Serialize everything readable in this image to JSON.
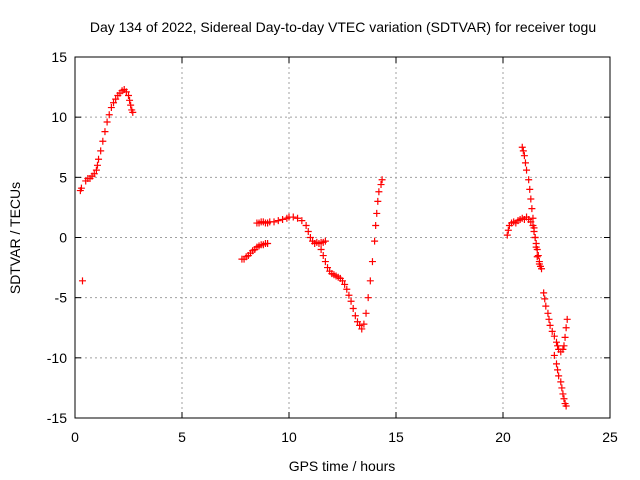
{
  "chart_data": {
    "type": "scatter",
    "title": "Day 134 of 2022, Sidereal Day-to-day VTEC variation (SDTVAR) for receiver togu",
    "xlabel": "GPS time / hours",
    "ylabel": "SDTVAR / TECUs",
    "xlim": [
      0,
      25
    ],
    "ylim": [
      -15,
      15
    ],
    "xticks": [
      0,
      5,
      10,
      15,
      20,
      25
    ],
    "yticks": [
      -15,
      -10,
      -5,
      0,
      5,
      10,
      15
    ],
    "xtick_labels": [
      "0",
      "5",
      "10",
      "15",
      "20",
      "25"
    ],
    "ytick_labels": [
      "-15",
      "-10",
      "-5",
      "0",
      "5",
      "10",
      "15"
    ],
    "grid": true,
    "legend": "none",
    "marker": "plus",
    "color": "#ff0000",
    "series": [
      {
        "points": [
          [
            0.25,
            3.9
          ],
          [
            0.3,
            4.1
          ],
          [
            0.35,
            -3.6
          ],
          [
            0.5,
            4.7
          ],
          [
            0.6,
            4.9
          ],
          [
            0.7,
            4.9
          ],
          [
            0.8,
            5.1
          ],
          [
            0.9,
            5.3
          ],
          [
            1.0,
            5.6
          ],
          [
            1.05,
            6.0
          ],
          [
            1.1,
            6.5
          ],
          [
            1.2,
            7.2
          ],
          [
            1.3,
            8.0
          ],
          [
            1.4,
            8.8
          ],
          [
            1.5,
            9.6
          ],
          [
            1.6,
            10.2
          ],
          [
            1.7,
            10.8
          ],
          [
            1.8,
            11.2
          ],
          [
            1.9,
            11.5
          ],
          [
            2.0,
            11.8
          ],
          [
            2.1,
            12.0
          ],
          [
            2.2,
            12.2
          ],
          [
            2.3,
            12.3
          ],
          [
            2.4,
            12.1
          ],
          [
            2.5,
            11.8
          ],
          [
            2.55,
            11.4
          ],
          [
            2.6,
            11.0
          ],
          [
            2.65,
            10.6
          ],
          [
            2.7,
            10.4
          ]
        ]
      },
      {
        "points": [
          [
            7.8,
            -1.8
          ],
          [
            7.9,
            -1.8
          ],
          [
            8.0,
            -1.6
          ],
          [
            8.1,
            -1.5
          ],
          [
            8.2,
            -1.3
          ],
          [
            8.3,
            -1.1
          ],
          [
            8.4,
            -1.0
          ],
          [
            8.5,
            -0.8
          ],
          [
            8.6,
            -0.7
          ],
          [
            8.7,
            -0.6
          ],
          [
            8.8,
            -0.6
          ],
          [
            8.9,
            -0.5
          ],
          [
            9.0,
            -0.5
          ],
          [
            8.5,
            1.2
          ],
          [
            8.6,
            1.2
          ],
          [
            8.7,
            1.3
          ],
          [
            8.8,
            1.3
          ],
          [
            8.9,
            1.2
          ],
          [
            9.0,
            1.2
          ],
          [
            9.1,
            1.3
          ],
          [
            9.3,
            1.3
          ],
          [
            9.5,
            1.4
          ],
          [
            9.7,
            1.5
          ],
          [
            9.9,
            1.6
          ],
          [
            10.0,
            1.7
          ],
          [
            10.2,
            1.7
          ],
          [
            10.4,
            1.6
          ],
          [
            10.6,
            1.4
          ],
          [
            10.8,
            1.0
          ],
          [
            10.9,
            0.5
          ],
          [
            11.0,
            0.0
          ],
          [
            11.1,
            -0.3
          ],
          [
            11.2,
            -0.5
          ],
          [
            11.3,
            -0.4
          ],
          [
            11.4,
            -0.5
          ],
          [
            11.5,
            -0.4
          ],
          [
            11.6,
            -0.4
          ],
          [
            11.7,
            -0.3
          ],
          [
            11.5,
            -1.0
          ],
          [
            11.6,
            -1.5
          ],
          [
            11.7,
            -2.0
          ],
          [
            11.8,
            -2.5
          ],
          [
            11.9,
            -2.8
          ],
          [
            12.0,
            -3.0
          ],
          [
            12.1,
            -3.1
          ],
          [
            12.2,
            -3.2
          ],
          [
            12.3,
            -3.3
          ],
          [
            12.4,
            -3.4
          ],
          [
            12.5,
            -3.6
          ],
          [
            12.6,
            -3.9
          ],
          [
            12.7,
            -4.3
          ],
          [
            12.8,
            -4.8
          ],
          [
            12.9,
            -5.3
          ],
          [
            13.0,
            -5.9
          ],
          [
            13.1,
            -6.5
          ],
          [
            13.2,
            -7.0
          ],
          [
            13.3,
            -7.3
          ],
          [
            13.4,
            -7.6
          ],
          [
            13.5,
            -7.2
          ],
          [
            13.6,
            -6.3
          ],
          [
            13.7,
            -5.0
          ],
          [
            13.8,
            -3.6
          ],
          [
            13.9,
            -2.0
          ],
          [
            14.0,
            -0.3
          ],
          [
            14.05,
            1.0
          ],
          [
            14.1,
            2.0
          ],
          [
            14.15,
            3.0
          ],
          [
            14.2,
            3.8
          ],
          [
            14.3,
            4.4
          ],
          [
            14.35,
            4.8
          ]
        ]
      },
      {
        "points": [
          [
            20.2,
            0.2
          ],
          [
            20.25,
            0.6
          ],
          [
            20.3,
            1.0
          ],
          [
            20.4,
            1.2
          ],
          [
            20.5,
            1.3
          ],
          [
            20.6,
            1.2
          ],
          [
            20.7,
            1.4
          ],
          [
            20.8,
            1.5
          ],
          [
            20.9,
            1.6
          ],
          [
            21.0,
            1.5
          ],
          [
            21.1,
            1.7
          ],
          [
            21.2,
            1.5
          ],
          [
            21.3,
            1.3
          ],
          [
            21.4,
            1.0
          ],
          [
            21.45,
            0.5
          ],
          [
            21.5,
            0.0
          ],
          [
            21.55,
            -0.5
          ],
          [
            21.6,
            -1.0
          ],
          [
            21.65,
            -1.5
          ],
          [
            21.7,
            -2.0
          ],
          [
            21.75,
            -2.4
          ],
          [
            20.9,
            7.5
          ],
          [
            20.95,
            7.2
          ],
          [
            21.0,
            6.8
          ],
          [
            21.05,
            6.2
          ],
          [
            21.1,
            5.6
          ],
          [
            21.2,
            4.8
          ],
          [
            21.25,
            4.0
          ],
          [
            21.3,
            3.2
          ],
          [
            21.35,
            2.4
          ],
          [
            21.4,
            1.6
          ],
          [
            21.45,
            0.8
          ],
          [
            21.5,
            0.0
          ],
          [
            21.55,
            -0.8
          ],
          [
            21.6,
            -1.6
          ],
          [
            21.7,
            -2.2
          ],
          [
            21.8,
            -2.6
          ],
          [
            21.9,
            -4.6
          ],
          [
            21.95,
            -5.1
          ],
          [
            22.0,
            -5.7
          ],
          [
            22.1,
            -6.3
          ],
          [
            22.15,
            -6.8
          ],
          [
            22.2,
            -7.3
          ],
          [
            22.3,
            -7.8
          ],
          [
            22.4,
            -8.2
          ],
          [
            22.5,
            -8.7
          ],
          [
            22.55,
            -9.0
          ],
          [
            22.6,
            -9.3
          ],
          [
            22.7,
            -9.5
          ],
          [
            22.8,
            -9.3
          ],
          [
            22.85,
            -9.0
          ],
          [
            22.9,
            -8.3
          ],
          [
            22.95,
            -7.5
          ],
          [
            23.0,
            -6.8
          ],
          [
            22.4,
            -9.8
          ],
          [
            22.5,
            -10.5
          ],
          [
            22.55,
            -11.0
          ],
          [
            22.6,
            -11.5
          ],
          [
            22.7,
            -12.0
          ],
          [
            22.75,
            -12.5
          ],
          [
            22.8,
            -13.0
          ],
          [
            22.85,
            -13.4
          ],
          [
            22.9,
            -13.8
          ],
          [
            22.95,
            -14.0
          ]
        ]
      }
    ]
  }
}
